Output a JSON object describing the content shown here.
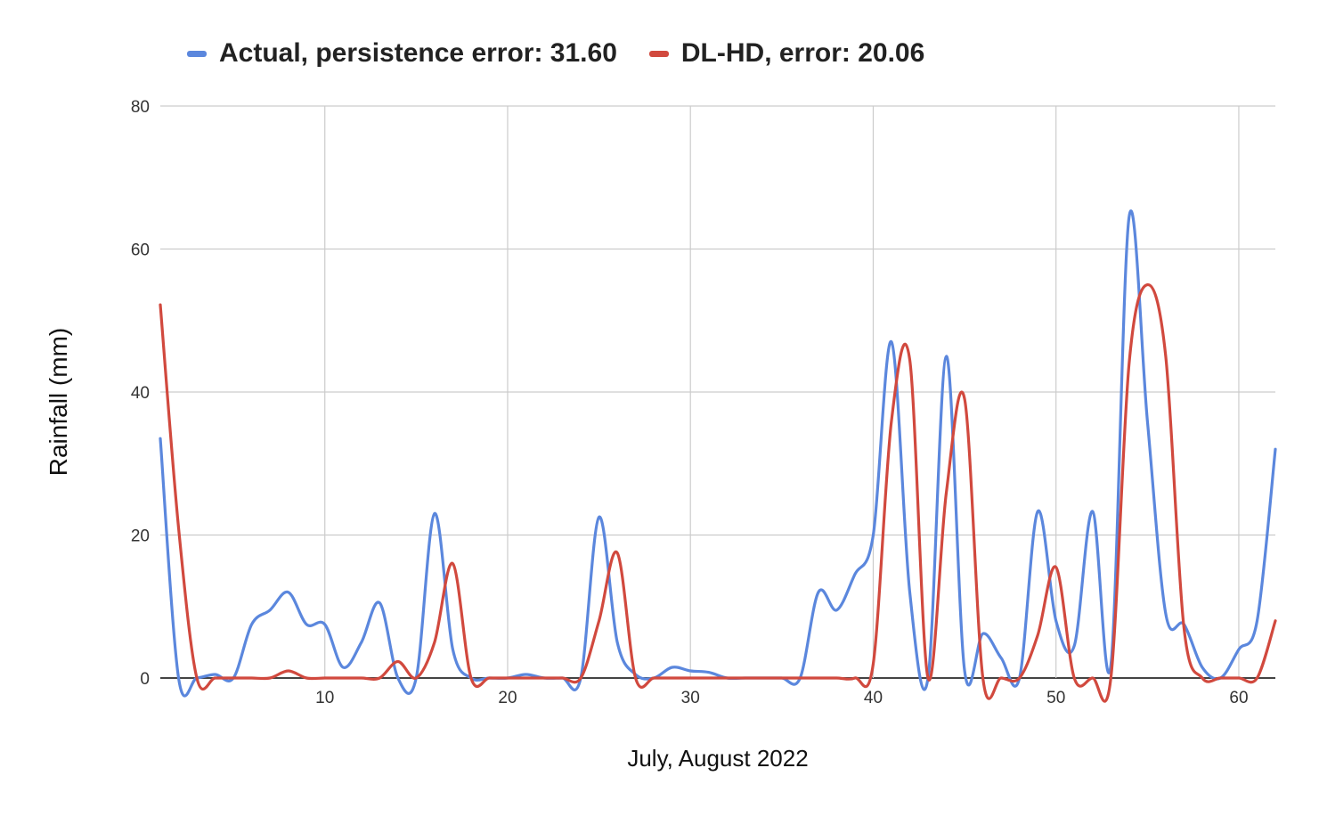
{
  "chart_data": {
    "type": "line",
    "title": "",
    "xlabel": "July, August 2022",
    "ylabel": "Rainfall (mm)",
    "xlim": [
      1,
      62
    ],
    "ylim": [
      0,
      80
    ],
    "x_ticks": [
      10,
      20,
      30,
      40,
      50,
      60
    ],
    "y_ticks": [
      0,
      20,
      40,
      60,
      80
    ],
    "grid": true,
    "legend_position": "top",
    "x": [
      1,
      2,
      3,
      4,
      5,
      6,
      7,
      8,
      9,
      10,
      11,
      12,
      13,
      14,
      15,
      16,
      17,
      18,
      19,
      20,
      21,
      22,
      23,
      24,
      25,
      26,
      27,
      28,
      29,
      30,
      31,
      32,
      33,
      34,
      35,
      36,
      37,
      38,
      39,
      40,
      41,
      42,
      43,
      44,
      45,
      46,
      47,
      48,
      49,
      50,
      51,
      52,
      53,
      54,
      55,
      56,
      57,
      58,
      59,
      60,
      61,
      62
    ],
    "series": [
      {
        "name": "Actual, persistence error: 31.60",
        "color": "#5b87dd",
        "values": [
          33.5,
          0,
          0,
          0.5,
          0,
          7.5,
          9.5,
          12,
          7.5,
          7.5,
          1.5,
          5,
          10.5,
          0,
          0,
          23,
          4,
          0,
          0,
          0,
          0.5,
          0,
          0,
          0,
          22.5,
          5,
          0.5,
          0,
          1.5,
          1,
          0.8,
          0,
          0,
          0,
          0,
          0,
          12,
          9.5,
          14.5,
          20,
          47,
          12,
          0,
          45,
          1,
          6.2,
          2.8,
          0,
          23.3,
          8,
          4.5,
          23.3,
          1.8,
          64.5,
          36,
          9,
          7.5,
          1.5,
          0,
          4,
          8,
          32
        ]
      },
      {
        "name": "DL-HD, error: 20.06",
        "color": "#d1493e",
        "values": [
          52.2,
          21,
          0,
          0,
          0,
          0,
          0,
          1,
          0,
          0,
          0,
          0,
          0,
          2.3,
          0,
          5,
          16,
          0,
          0,
          0,
          0,
          0,
          0,
          0,
          8,
          17.5,
          0,
          0,
          0,
          0,
          0,
          0,
          0,
          0,
          0,
          0,
          0,
          0,
          0,
          2,
          36,
          44.5,
          0,
          26,
          39,
          0,
          0,
          0,
          6,
          15.5,
          0,
          0,
          0,
          44,
          55,
          45,
          7,
          0,
          0,
          0,
          0,
          8
        ]
      }
    ]
  }
}
